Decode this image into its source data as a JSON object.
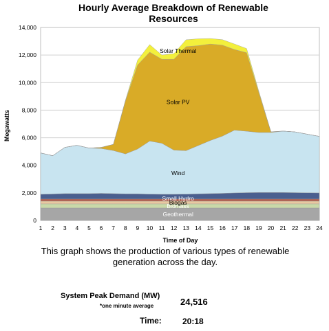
{
  "chart_data": {
    "type": "area",
    "title_line1": "Hourly Average Breakdown of Renewable",
    "title_line2": "Resources",
    "xlabel": "Time of Day",
    "ylabel": "Megawatts",
    "xlim": [
      1,
      24
    ],
    "ylim": [
      0,
      14000
    ],
    "x": [
      1,
      2,
      3,
      4,
      5,
      6,
      7,
      8,
      9,
      10,
      11,
      12,
      13,
      14,
      15,
      16,
      17,
      18,
      19,
      20,
      21,
      22,
      23,
      24
    ],
    "x_ticks": [
      "1",
      "2",
      "3",
      "4",
      "5",
      "6",
      "7",
      "8",
      "9",
      "10",
      "11",
      "12",
      "13",
      "14",
      "15",
      "16",
      "17",
      "18",
      "19",
      "20",
      "21",
      "22",
      "23",
      "24"
    ],
    "y_ticks": [
      "0",
      "2,000",
      "4,000",
      "6,000",
      "8,000",
      "10,000",
      "12,000",
      "14,000"
    ],
    "y_tick_values": [
      0,
      2000,
      4000,
      6000,
      8000,
      10000,
      12000,
      14000
    ],
    "grid": true,
    "series": [
      {
        "name": "Geothermal",
        "color": "#a6a6a6",
        "label_x": 12,
        "label_y": 450,
        "values": [
          900,
          900,
          900,
          900,
          900,
          900,
          900,
          900,
          900,
          900,
          900,
          900,
          900,
          900,
          900,
          900,
          900,
          900,
          900,
          900,
          900,
          900,
          900,
          900
        ]
      },
      {
        "name": "Biomass",
        "color": "#c9d9a8",
        "label_x": 12,
        "label_y": 1050,
        "values": [
          300,
          300,
          300,
          300,
          300,
          300,
          300,
          300,
          300,
          300,
          300,
          300,
          300,
          300,
          300,
          300,
          300,
          300,
          300,
          300,
          300,
          300,
          300,
          300
        ]
      },
      {
        "name": "Biogas",
        "color": "#e8c9a0",
        "label_x": 12,
        "label_y": 1300,
        "values": [
          200,
          200,
          200,
          200,
          200,
          200,
          200,
          200,
          200,
          200,
          200,
          200,
          200,
          200,
          200,
          200,
          200,
          200,
          200,
          200,
          200,
          200,
          200,
          200
        ]
      },
      {
        "name": "",
        "color": "#b05a4a",
        "values": [
          150,
          150,
          150,
          150,
          150,
          150,
          150,
          150,
          150,
          150,
          150,
          150,
          150,
          150,
          150,
          150,
          150,
          150,
          150,
          150,
          150,
          150,
          150,
          150
        ]
      },
      {
        "name": "Small Hydro",
        "color": "#4a5f8f",
        "label_x": 12,
        "label_y": 1600,
        "values": [
          350,
          370,
          400,
          400,
          400,
          420,
          400,
          380,
          380,
          360,
          350,
          350,
          360,
          380,
          400,
          420,
          450,
          470,
          480,
          480,
          480,
          470,
          460,
          450
        ]
      },
      {
        "name": "Wind",
        "color": "#c8e4f0",
        "label_x": 12,
        "label_y": 3450,
        "values": [
          3000,
          2780,
          3350,
          3500,
          3300,
          3250,
          3120,
          2900,
          3250,
          3850,
          3700,
          3200,
          3150,
          3500,
          3850,
          4150,
          4550,
          4450,
          4350,
          4350,
          4450,
          4400,
          4250,
          4100
        ]
      },
      {
        "name": "Solar PV",
        "color": "#d9ab27",
        "label_x": 12,
        "label_y": 8600,
        "values": [
          0,
          0,
          0,
          0,
          0,
          80,
          450,
          3850,
          6100,
          6450,
          6100,
          6600,
          7550,
          7250,
          7000,
          6600,
          5850,
          5700,
          2900,
          50,
          0,
          0,
          0,
          0
        ]
      },
      {
        "name": "Solar Thermal",
        "color": "#f3f03c",
        "label_x": 12,
        "label_y": 12300,
        "values": [
          0,
          0,
          0,
          0,
          0,
          0,
          0,
          50,
          350,
          550,
          300,
          400,
          500,
          500,
          400,
          400,
          400,
          300,
          100,
          0,
          0,
          0,
          0,
          0
        ]
      }
    ]
  },
  "caption": {
    "line1": "This graph shows the production of various types of renewable",
    "line2": "generation across the day."
  },
  "stats": {
    "peak_label": "System Peak Demand (MW)",
    "peak_note": "*one minute average",
    "peak_value": "24,516",
    "time_label": "Time:",
    "time_value": "20:18"
  }
}
